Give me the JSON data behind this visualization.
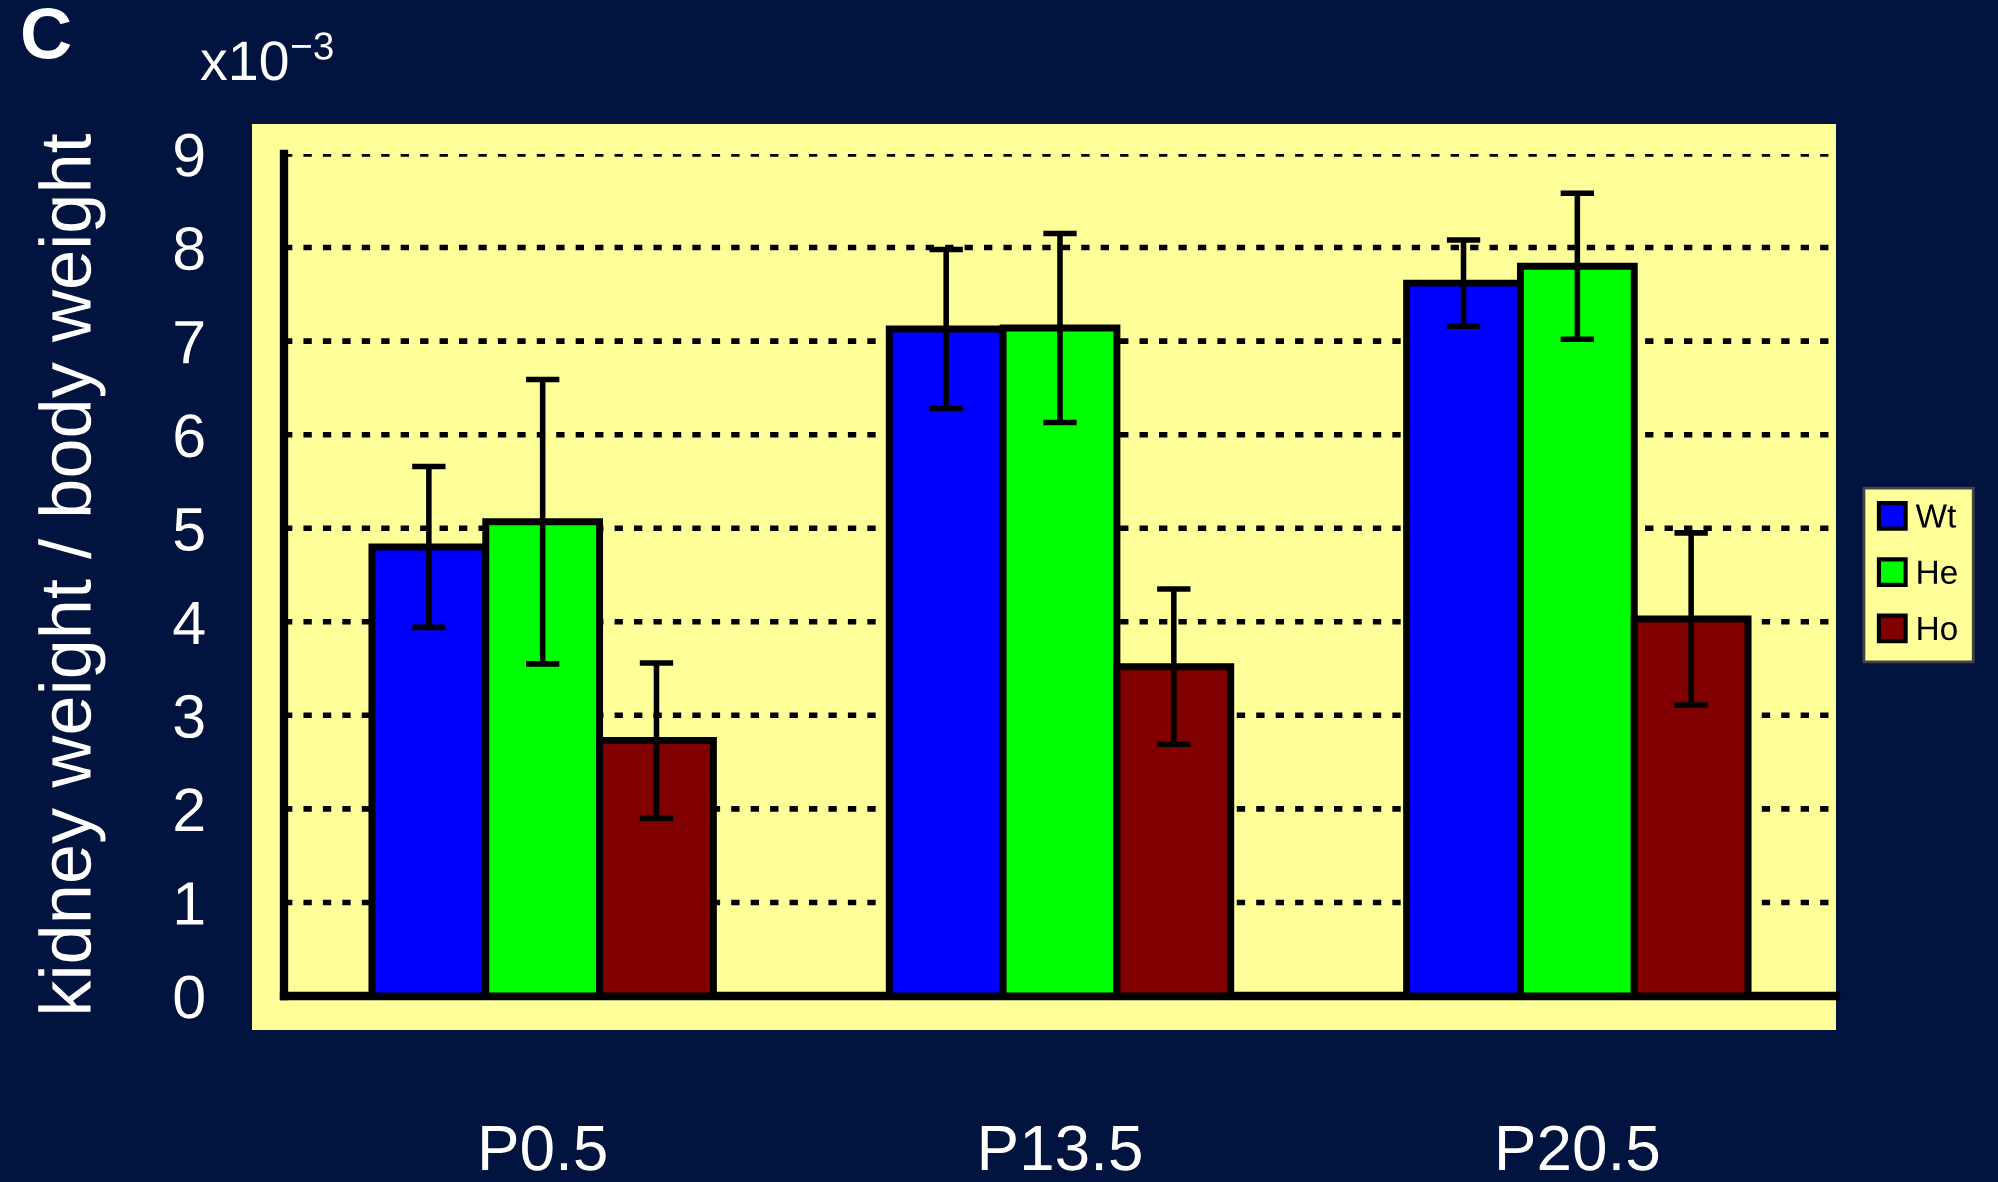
{
  "chart_data": {
    "type": "bar",
    "categories": [
      "P0.5",
      "P13.5",
      "P20.5"
    ],
    "ylabel": "kidney weight / body weight",
    "annotations": [
      "C",
      "x10$^{−3}$"
    ],
    "series": [
      {
        "name": "Wt",
        "color": "#0000ff",
        "values": [
          4.8,
          7.13,
          7.62
        ],
        "errors": [
          0.86,
          0.85,
          0.46
        ]
      },
      {
        "name": "He",
        "color": "#00ff00",
        "values": [
          5.07,
          7.14,
          7.8
        ],
        "errors": [
          1.52,
          1.01,
          0.78
        ]
      },
      {
        "name": "Ho",
        "color": "#800000",
        "values": [
          2.73,
          3.52,
          4.03
        ],
        "errors": [
          0.83,
          0.83,
          0.92
        ]
      }
    ],
    "ylim": [
      0,
      9
    ],
    "yticks": [
      0,
      1,
      2,
      3,
      4,
      5,
      6,
      7,
      8,
      9
    ],
    "grid": "y",
    "legend": "right"
  }
}
